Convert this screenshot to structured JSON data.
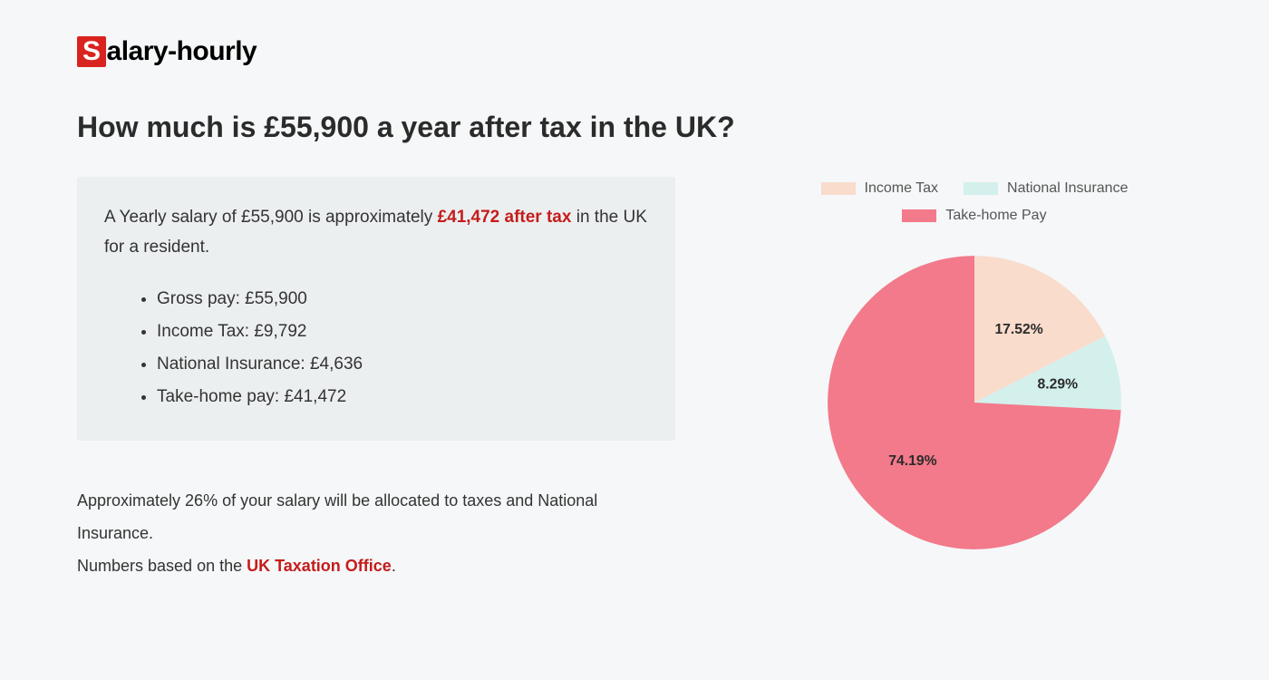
{
  "logo": {
    "prefix": "S",
    "rest": "alary-hourly"
  },
  "heading": "How much is £55,900 a year after tax in the UK?",
  "summary": {
    "lead_pre": "A Yearly salary of £55,900 is approximately ",
    "lead_hl": "£41,472 after tax",
    "lead_post": " in the UK for a resident.",
    "items": [
      "Gross pay: £55,900",
      "Income Tax: £9,792",
      "National Insurance: £4,636",
      "Take-home pay: £41,472"
    ]
  },
  "footnote": {
    "line1": "Approximately 26% of your salary will be allocated to taxes and National Insurance.",
    "line2_pre": "Numbers based on the ",
    "line2_link": "UK Taxation Office",
    "line2_post": "."
  },
  "chart": {
    "type": "pie",
    "background_color": "#f5f7f8",
    "radius": 175,
    "label_fontsize": 17,
    "label_color": "#2b2b2b",
    "legend_fontsize": 16,
    "legend_color": "#555555",
    "slices": [
      {
        "label": "Income Tax",
        "value": 17.52,
        "color": "#f9dccc",
        "pct_text": "17.52%"
      },
      {
        "label": "National Insurance",
        "value": 8.29,
        "color": "#d3f0ec",
        "pct_text": "8.29%"
      },
      {
        "label": "Take-home Pay",
        "value": 74.19,
        "color": "#f27a8a",
        "pct_text": "74.19%"
      }
    ]
  }
}
